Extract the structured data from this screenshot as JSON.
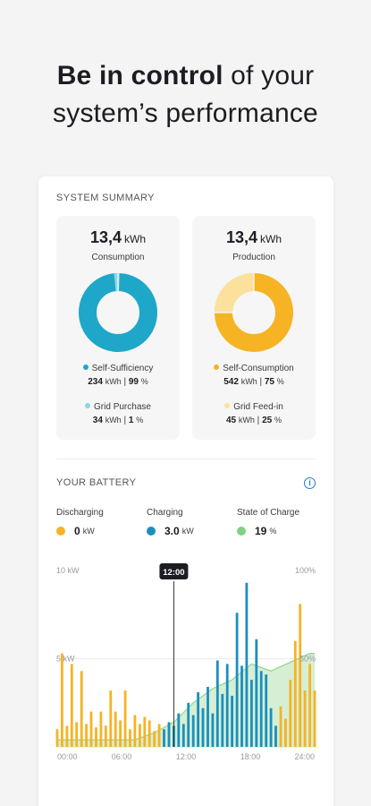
{
  "headline": {
    "bold": "Be in control",
    "rest_line1": " of your",
    "line2": "system’s performance"
  },
  "summary": {
    "title": "SYSTEM SUMMARY",
    "consumption": {
      "value": "13,4",
      "unit": "kWh",
      "label": "Consumption",
      "colors": {
        "main": "#1ea7c8",
        "light": "#8fd3e6"
      },
      "items": [
        {
          "label": "Self-Sufficiency",
          "value": "234",
          "unit": "kWh",
          "percent": "99",
          "percent_unit": "%",
          "color": "#1ea7c8"
        },
        {
          "label": "Grid Purchase",
          "value": "34",
          "unit": "kWh",
          "percent": "1",
          "percent_unit": "%",
          "color": "#8fd3e6"
        }
      ]
    },
    "production": {
      "value": "13,4",
      "unit": "kWh",
      "label": "Production",
      "colors": {
        "main": "#f6b323",
        "light": "#fbe19c"
      },
      "items": [
        {
          "label": "Self-Consumption",
          "value": "542",
          "unit": "kWh",
          "percent": "75",
          "percent_unit": "%",
          "color": "#f6b323"
        },
        {
          "label": "Grid Feed-in",
          "value": "45",
          "unit": "kWh",
          "percent": "25",
          "percent_unit": "%",
          "color": "#fbe19c"
        }
      ]
    }
  },
  "battery": {
    "title": "YOUR BATTERY",
    "info_icon": "info-icon",
    "stats": [
      {
        "label": "Discharging",
        "value": "0",
        "unit": "kW",
        "color": "#f6b323"
      },
      {
        "label": "Charging",
        "value": "3.0",
        "unit": "kW",
        "color": "#1a8fbf"
      },
      {
        "label": "State of Charge",
        "value": "19",
        "unit": "%",
        "color": "#7fd27f"
      }
    ]
  },
  "chart_data": {
    "type": "bar",
    "y_left_ticks": [
      "10 kW",
      "5 kW"
    ],
    "y_right_ticks": [
      "100%",
      "50%"
    ],
    "x_ticks": [
      "00:00",
      "06:00",
      "12:00",
      "18:00",
      "24:00"
    ],
    "cursor_label": "12:00",
    "cursor_hour": 12,
    "ylim": [
      0,
      10
    ],
    "colors": {
      "discharging": "#f6b323",
      "charging": "#1a8fbf",
      "soc_fill": "#cfeccd",
      "soc_line": "#8fd68f"
    },
    "bars": [
      {
        "h": 0.0,
        "v": 1.0,
        "s": "discharging"
      },
      {
        "h": 0.5,
        "v": 5.3,
        "s": "discharging"
      },
      {
        "h": 1.0,
        "v": 1.2,
        "s": "discharging"
      },
      {
        "h": 1.5,
        "v": 4.7,
        "s": "discharging"
      },
      {
        "h": 2.0,
        "v": 1.4,
        "s": "discharging"
      },
      {
        "h": 2.5,
        "v": 4.3,
        "s": "discharging"
      },
      {
        "h": 3.0,
        "v": 1.3,
        "s": "discharging"
      },
      {
        "h": 3.5,
        "v": 2.0,
        "s": "discharging"
      },
      {
        "h": 4.0,
        "v": 1.1,
        "s": "discharging"
      },
      {
        "h": 4.5,
        "v": 2.0,
        "s": "discharging"
      },
      {
        "h": 5.0,
        "v": 1.2,
        "s": "discharging"
      },
      {
        "h": 5.5,
        "v": 3.2,
        "s": "discharging"
      },
      {
        "h": 6.0,
        "v": 2.0,
        "s": "discharging"
      },
      {
        "h": 6.5,
        "v": 1.5,
        "s": "discharging"
      },
      {
        "h": 7.0,
        "v": 3.2,
        "s": "discharging"
      },
      {
        "h": 7.5,
        "v": 1.0,
        "s": "discharging"
      },
      {
        "h": 8.0,
        "v": 1.8,
        "s": "discharging"
      },
      {
        "h": 8.5,
        "v": 1.3,
        "s": "discharging"
      },
      {
        "h": 9.0,
        "v": 1.7,
        "s": "discharging"
      },
      {
        "h": 9.5,
        "v": 1.5,
        "s": "discharging"
      },
      {
        "h": 10.0,
        "v": 0.9,
        "s": "discharging"
      },
      {
        "h": 10.5,
        "v": 1.3,
        "s": "discharging"
      },
      {
        "h": 11.0,
        "v": 1.0,
        "s": "charging"
      },
      {
        "h": 11.5,
        "v": 1.4,
        "s": "charging"
      },
      {
        "h": 12.0,
        "v": 1.2,
        "s": "charging"
      },
      {
        "h": 12.5,
        "v": 1.9,
        "s": "charging"
      },
      {
        "h": 13.0,
        "v": 1.3,
        "s": "charging"
      },
      {
        "h": 13.5,
        "v": 2.5,
        "s": "charging"
      },
      {
        "h": 14.0,
        "v": 1.8,
        "s": "charging"
      },
      {
        "h": 14.5,
        "v": 3.1,
        "s": "charging"
      },
      {
        "h": 15.0,
        "v": 2.2,
        "s": "charging"
      },
      {
        "h": 15.5,
        "v": 3.4,
        "s": "charging"
      },
      {
        "h": 16.0,
        "v": 1.9,
        "s": "charging"
      },
      {
        "h": 16.5,
        "v": 4.9,
        "s": "charging"
      },
      {
        "h": 17.0,
        "v": 3.0,
        "s": "charging"
      },
      {
        "h": 17.5,
        "v": 4.7,
        "s": "charging"
      },
      {
        "h": 18.0,
        "v": 2.9,
        "s": "charging"
      },
      {
        "h": 18.5,
        "v": 7.6,
        "s": "charging"
      },
      {
        "h": 19.0,
        "v": 4.6,
        "s": "charging"
      },
      {
        "h": 19.5,
        "v": 9.3,
        "s": "charging"
      },
      {
        "h": 20.0,
        "v": 3.8,
        "s": "charging"
      },
      {
        "h": 20.5,
        "v": 6.1,
        "s": "charging"
      },
      {
        "h": 21.0,
        "v": 4.3,
        "s": "charging"
      },
      {
        "h": 21.5,
        "v": 4.1,
        "s": "charging"
      },
      {
        "h": 22.0,
        "v": 2.2,
        "s": "charging"
      },
      {
        "h": 22.5,
        "v": 1.2,
        "s": "charging"
      },
      {
        "h": 23.0,
        "v": 2.3,
        "s": "discharging"
      },
      {
        "h": 23.5,
        "v": 1.6,
        "s": "discharging"
      },
      {
        "h": 24.0,
        "v": 3.8,
        "s": "discharging"
      },
      {
        "h": 24.5,
        "v": 6.0,
        "s": "discharging"
      },
      {
        "h": 25.0,
        "v": 8.1,
        "s": "discharging"
      },
      {
        "h": 25.5,
        "v": 3.2,
        "s": "discharging"
      },
      {
        "h": 26.0,
        "v": 4.7,
        "s": "discharging"
      },
      {
        "h": 26.5,
        "v": 3.2,
        "s": "discharging"
      }
    ],
    "soc_x": [
      0,
      2,
      4,
      6,
      8,
      10,
      12,
      14,
      16,
      18,
      20,
      22,
      24,
      26,
      26.5
    ],
    "soc_y": [
      4,
      4,
      4,
      4,
      4,
      8,
      14,
      25,
      33,
      38,
      47,
      43,
      48,
      53,
      53
    ]
  }
}
